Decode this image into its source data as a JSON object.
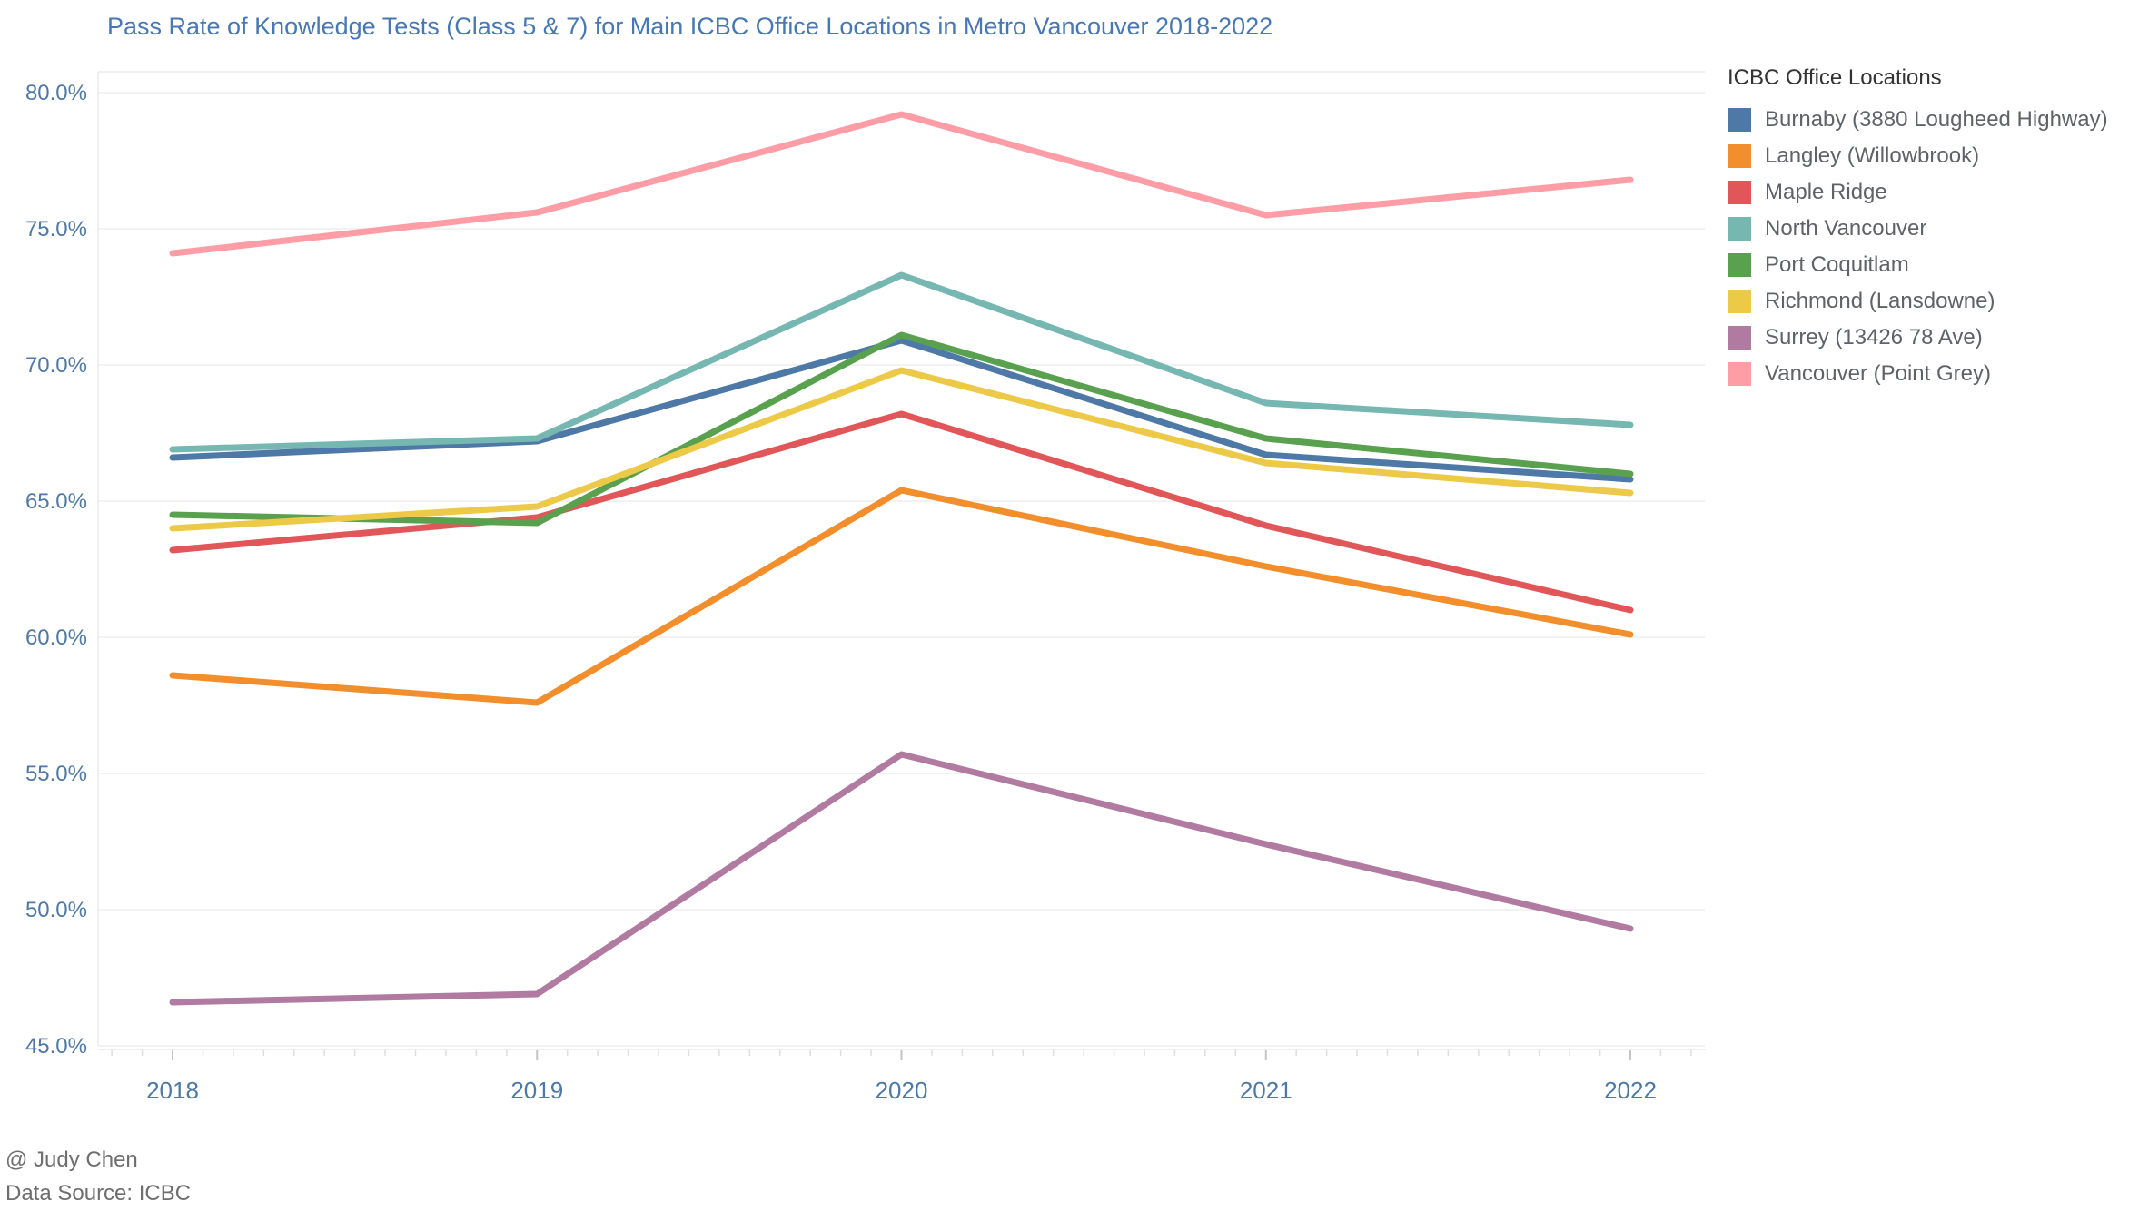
{
  "chart_data": {
    "type": "line",
    "title": "Pass Rate of Knowledge Tests (Class 5 & 7) for Main ICBC Office Locations in Metro Vancouver 2018-2022",
    "unit": "percent",
    "x": [
      2018,
      2019,
      2020,
      2021,
      2022
    ],
    "xtick_labels": [
      "2018",
      "2019",
      "2020",
      "2021",
      "2022"
    ],
    "ylim": [
      45,
      80
    ],
    "yticks": [
      45,
      50,
      55,
      60,
      65,
      70,
      75,
      80
    ],
    "ytick_labels": [
      "45.0%",
      "50.0%",
      "55.0%",
      "60.0%",
      "65.0%",
      "70.0%",
      "75.0%",
      "80.0%"
    ],
    "grid": "horizontal",
    "legend_position": "right",
    "legend_title": "ICBC Office Locations",
    "series": [
      {
        "name": "Burnaby (3880 Lougheed Highway)",
        "color": "#4e79a7",
        "values": [
          66.6,
          67.2,
          70.9,
          66.7,
          65.8
        ]
      },
      {
        "name": "Langley (Willowbrook)",
        "color": "#f28e2b",
        "values": [
          58.6,
          57.6,
          65.4,
          62.6,
          60.1
        ]
      },
      {
        "name": "Maple Ridge",
        "color": "#e15759",
        "values": [
          63.2,
          64.4,
          68.2,
          64.1,
          61.0
        ]
      },
      {
        "name": "North Vancouver",
        "color": "#76b7b2",
        "values": [
          66.9,
          67.3,
          73.3,
          68.6,
          67.8
        ]
      },
      {
        "name": "Port Coquitlam",
        "color": "#59a14f",
        "values": [
          64.5,
          64.2,
          71.1,
          67.3,
          66.0
        ]
      },
      {
        "name": "Richmond (Lansdowne)",
        "color": "#edc948",
        "values": [
          64.0,
          64.8,
          69.8,
          66.4,
          65.3
        ]
      },
      {
        "name": "Surrey (13426 78 Ave)",
        "color": "#b07aa1",
        "values": [
          46.6,
          46.9,
          55.7,
          52.4,
          49.3
        ]
      },
      {
        "name": "Vancouver (Point Grey)",
        "color": "#ff9da7",
        "values": [
          74.1,
          75.6,
          79.2,
          75.5,
          76.8
        ]
      }
    ],
    "axis_label_color": "#4e79a7",
    "title_color": "#4878b4",
    "gridline_color": "#f2f2f2",
    "footer": {
      "author": "@ Judy Chen",
      "source": "Data Source: ICBC"
    }
  }
}
